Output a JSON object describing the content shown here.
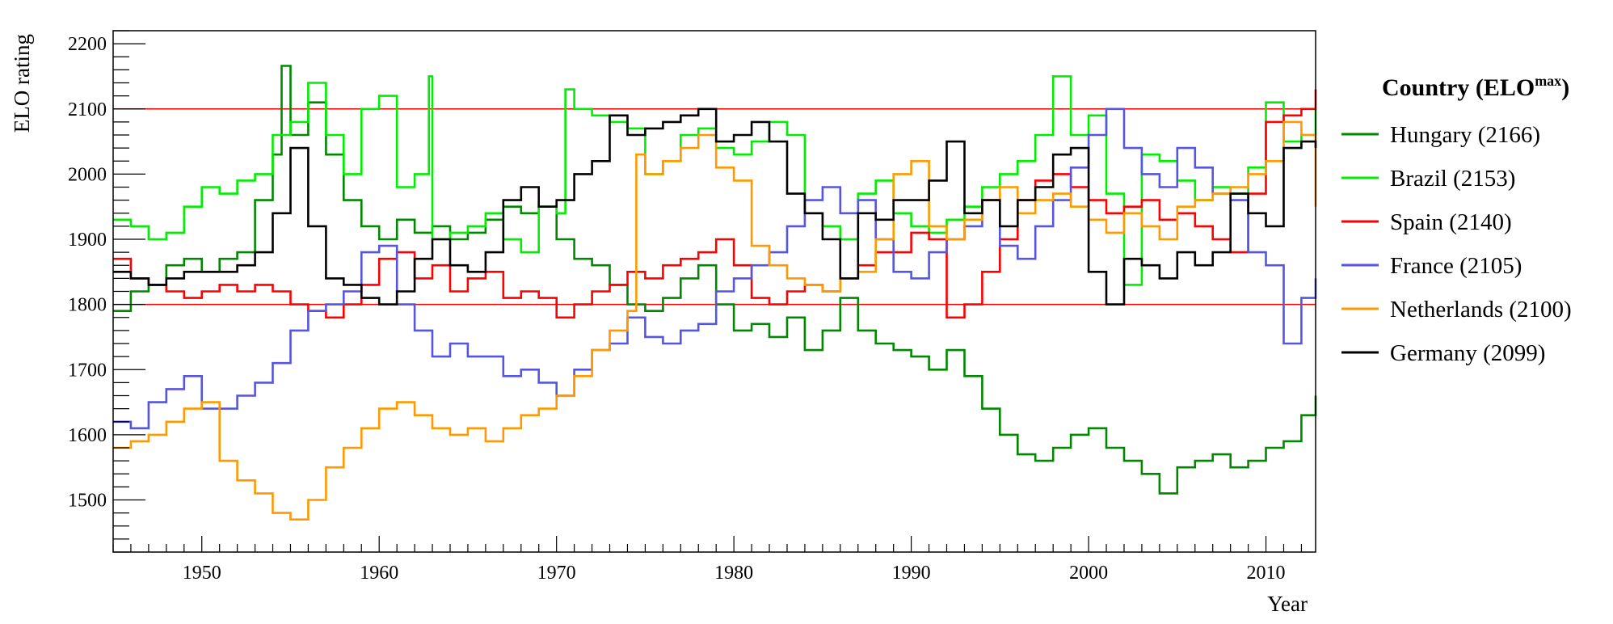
{
  "chart_data": {
    "type": "line",
    "xlabel": "Year",
    "ylabel": "ELO rating",
    "xlim": [
      1945,
      2012.8
    ],
    "ylim": [
      1420,
      2220
    ],
    "x_ticks": [
      1950,
      1960,
      1970,
      1980,
      1990,
      2000,
      2010
    ],
    "y_ticks": [
      1500,
      1600,
      1700,
      1800,
      1900,
      2000,
      2100,
      2200
    ],
    "x_tick_labels": [
      "1950",
      "1960",
      "1970",
      "1980",
      "1990",
      "2000",
      "2010"
    ],
    "y_tick_labels": [
      "1500",
      "1600",
      "1700",
      "1800",
      "1900",
      "2000",
      "2100",
      "2200"
    ],
    "reference_lines": [
      1800,
      2100
    ],
    "reference_color": "#ff0000",
    "grid": false,
    "step": true,
    "legend": {
      "title": "Country (ELO",
      "title_sup": "max",
      "title_end": ")",
      "position": "right"
    },
    "series": [
      {
        "name": "Hungary (2166)",
        "color": "#008800",
        "x": [
          1945,
          1946,
          1947,
          1948,
          1949,
          1950,
          1951,
          1952,
          1953,
          1954,
          1954.5,
          1955,
          1956,
          1957,
          1958,
          1959,
          1960,
          1961,
          1962,
          1963,
          1964,
          1965,
          1966,
          1967,
          1968,
          1969,
          1970,
          1971,
          1972,
          1973,
          1974,
          1975,
          1976,
          1977,
          1978,
          1979,
          1980,
          1981,
          1982,
          1983,
          1984,
          1985,
          1986,
          1987,
          1988,
          1989,
          1990,
          1991,
          1992,
          1993,
          1994,
          1995,
          1996,
          1997,
          1998,
          1999,
          2000,
          2001,
          2002,
          2003,
          2004,
          2005,
          2006,
          2007,
          2008,
          2009,
          2010,
          2011,
          2012,
          2012.8
        ],
        "y": [
          1790,
          1820,
          1830,
          1860,
          1870,
          1850,
          1870,
          1880,
          1960,
          2030,
          2166,
          2060,
          2110,
          2030,
          1960,
          1920,
          1900,
          1930,
          1910,
          1920,
          1900,
          1910,
          1930,
          1950,
          1940,
          1950,
          1900,
          1870,
          1860,
          1830,
          1800,
          1790,
          1810,
          1840,
          1860,
          1800,
          1760,
          1770,
          1750,
          1780,
          1730,
          1760,
          1810,
          1760,
          1740,
          1730,
          1720,
          1700,
          1730,
          1690,
          1640,
          1600,
          1570,
          1560,
          1580,
          1600,
          1610,
          1580,
          1560,
          1540,
          1510,
          1550,
          1560,
          1570,
          1550,
          1560,
          1580,
          1590,
          1630,
          1660
        ]
      },
      {
        "name": "Brazil (2153)",
        "color": "#00ee00",
        "x": [
          1945,
          1946,
          1947,
          1948,
          1949,
          1950,
          1951,
          1952,
          1953,
          1954,
          1955,
          1956,
          1957,
          1958,
          1959,
          1960,
          1961,
          1962,
          1962.8,
          1963,
          1964,
          1965,
          1966,
          1967,
          1968,
          1969,
          1970,
          1970.5,
          1971,
          1972,
          1973,
          1974,
          1975,
          1976,
          1977,
          1978,
          1979,
          1980,
          1981,
          1982,
          1983,
          1984,
          1985,
          1986,
          1987,
          1988,
          1989,
          1990,
          1991,
          1992,
          1993,
          1994,
          1995,
          1996,
          1997,
          1998,
          1999,
          2000,
          2001,
          2002,
          2003,
          2004,
          2005,
          2006,
          2007,
          2008,
          2009,
          2010,
          2011,
          2012,
          2012.8
        ],
        "y": [
          1930,
          1920,
          1900,
          1910,
          1950,
          1980,
          1970,
          1990,
          2000,
          2060,
          2080,
          2140,
          2060,
          2000,
          2100,
          2120,
          1980,
          2000,
          2150,
          1900,
          1910,
          1920,
          1940,
          1900,
          1880,
          1950,
          1940,
          2130,
          2100,
          2090,
          2080,
          2070,
          2000,
          2020,
          2060,
          2070,
          2040,
          2030,
          2050,
          2080,
          2060,
          1940,
          1920,
          1900,
          1970,
          1990,
          1940,
          1920,
          1910,
          1930,
          1950,
          1980,
          2000,
          2020,
          2060,
          2150,
          2060,
          2090,
          1970,
          1830,
          2030,
          2020,
          1990,
          1960,
          1980,
          1970,
          2010,
          2110,
          2050,
          2060,
          2100
        ]
      },
      {
        "name": "Spain (2140)",
        "color": "#ff0000",
        "x": [
          1945,
          1946,
          1947,
          1948,
          1949,
          1950,
          1951,
          1952,
          1953,
          1954,
          1955,
          1956,
          1957,
          1958,
          1959,
          1960,
          1961,
          1962,
          1963,
          1964,
          1965,
          1966,
          1967,
          1968,
          1969,
          1970,
          1971,
          1972,
          1973,
          1974,
          1975,
          1976,
          1977,
          1978,
          1979,
          1980,
          1981,
          1982,
          1983,
          1984,
          1985,
          1986,
          1987,
          1988,
          1989,
          1990,
          1991,
          1992,
          1993,
          1994,
          1995,
          1996,
          1997,
          1998,
          1999,
          2000,
          2001,
          2002,
          2003,
          2004,
          2005,
          2006,
          2007,
          2008,
          2009,
          2010,
          2011,
          2012,
          2012.8
        ],
        "y": [
          1870,
          1840,
          1830,
          1820,
          1810,
          1820,
          1830,
          1820,
          1830,
          1820,
          1800,
          1790,
          1780,
          1800,
          1830,
          1870,
          1880,
          1840,
          1860,
          1820,
          1840,
          1850,
          1810,
          1820,
          1810,
          1780,
          1800,
          1820,
          1830,
          1850,
          1840,
          1860,
          1870,
          1880,
          1900,
          1860,
          1810,
          1800,
          1820,
          1830,
          1820,
          1840,
          1860,
          1880,
          1880,
          1910,
          1900,
          1780,
          1800,
          1850,
          1900,
          1960,
          1990,
          2000,
          1980,
          1960,
          1940,
          1950,
          1960,
          1930,
          1940,
          1920,
          1900,
          1880,
          1970,
          2080,
          2090,
          2100,
          2130
        ]
      },
      {
        "name": "France (2105)",
        "color": "#5555dd",
        "x": [
          1945,
          1946,
          1947,
          1948,
          1949,
          1950,
          1951,
          1952,
          1953,
          1954,
          1955,
          1956,
          1957,
          1958,
          1959,
          1960,
          1961,
          1962,
          1963,
          1964,
          1965,
          1966,
          1967,
          1968,
          1969,
          1970,
          1971,
          1972,
          1973,
          1974,
          1975,
          1976,
          1977,
          1978,
          1979,
          1980,
          1981,
          1982,
          1983,
          1984,
          1985,
          1986,
          1987,
          1988,
          1989,
          1990,
          1991,
          1992,
          1993,
          1994,
          1995,
          1996,
          1997,
          1998,
          1999,
          2000,
          2001,
          2002,
          2003,
          2004,
          2005,
          2006,
          2007,
          2008,
          2009,
          2010,
          2011,
          2012,
          2012.8
        ],
        "y": [
          1620,
          1610,
          1650,
          1670,
          1690,
          1640,
          1640,
          1660,
          1680,
          1710,
          1760,
          1790,
          1800,
          1820,
          1880,
          1890,
          1800,
          1760,
          1720,
          1740,
          1720,
          1720,
          1690,
          1700,
          1680,
          1660,
          1700,
          1730,
          1740,
          1780,
          1750,
          1740,
          1760,
          1770,
          1820,
          1840,
          1860,
          1880,
          1920,
          1960,
          1980,
          1940,
          1960,
          1900,
          1850,
          1840,
          1880,
          1900,
          1920,
          1960,
          1890,
          1870,
          1920,
          1960,
          2010,
          2060,
          2100,
          2040,
          2000,
          1980,
          2040,
          2010,
          1970,
          1960,
          1880,
          1860,
          1740,
          1810,
          1840
        ]
      },
      {
        "name": "Netherlands (2100)",
        "color": "#ff9900",
        "x": [
          1945,
          1946,
          1947,
          1948,
          1949,
          1950,
          1951,
          1952,
          1953,
          1954,
          1955,
          1956,
          1957,
          1958,
          1959,
          1960,
          1961,
          1962,
          1963,
          1964,
          1965,
          1966,
          1967,
          1968,
          1969,
          1970,
          1971,
          1972,
          1973,
          1974,
          1974.5,
          1975,
          1976,
          1977,
          1978,
          1979,
          1980,
          1981,
          1982,
          1983,
          1984,
          1985,
          1986,
          1987,
          1988,
          1989,
          1990,
          1991,
          1992,
          1993,
          1994,
          1995,
          1996,
          1997,
          1998,
          1999,
          2000,
          2001,
          2002,
          2003,
          2004,
          2005,
          2006,
          2007,
          2008,
          2009,
          2010,
          2011,
          2012,
          2012.8
        ],
        "y": [
          1580,
          1590,
          1600,
          1620,
          1640,
          1650,
          1560,
          1530,
          1510,
          1480,
          1470,
          1500,
          1550,
          1580,
          1610,
          1640,
          1650,
          1630,
          1610,
          1600,
          1610,
          1590,
          1610,
          1630,
          1640,
          1660,
          1690,
          1730,
          1760,
          1790,
          2030,
          2000,
          2020,
          2040,
          2060,
          2010,
          1990,
          1890,
          1860,
          1840,
          1830,
          1820,
          1840,
          1850,
          1900,
          2000,
          2020,
          1920,
          1900,
          1930,
          1960,
          1980,
          1940,
          1960,
          1970,
          1950,
          1930,
          1910,
          1940,
          1920,
          1900,
          1950,
          1960,
          1970,
          1980,
          2000,
          2020,
          2080,
          2060,
          1950
        ]
      },
      {
        "name": "Germany (2099)",
        "color": "#000000",
        "x": [
          1945,
          1946,
          1947,
          1948,
          1949,
          1950,
          1951,
          1952,
          1953,
          1954,
          1955,
          1956,
          1957,
          1958,
          1959,
          1960,
          1961,
          1962,
          1963,
          1964,
          1965,
          1966,
          1967,
          1968,
          1969,
          1970,
          1971,
          1972,
          1973,
          1974,
          1975,
          1976,
          1977,
          1978,
          1979,
          1980,
          1981,
          1982,
          1983,
          1984,
          1985,
          1986,
          1987,
          1988,
          1989,
          1990,
          1991,
          1992,
          1993,
          1994,
          1995,
          1996,
          1997,
          1998,
          1999,
          2000,
          2001,
          2002,
          2003,
          2004,
          2005,
          2006,
          2007,
          2008,
          2009,
          2010,
          2011,
          2012,
          2012.8
        ],
        "y": [
          1850,
          1840,
          1830,
          1840,
          1850,
          1850,
          1850,
          1860,
          1880,
          1940,
          2040,
          1920,
          1840,
          1830,
          1810,
          1800,
          1820,
          1870,
          1900,
          1860,
          1850,
          1880,
          1960,
          1980,
          1950,
          1960,
          2000,
          2020,
          2090,
          2060,
          2070,
          2080,
          2090,
          2100,
          2050,
          2060,
          2080,
          2050,
          1970,
          1940,
          1900,
          1840,
          1940,
          1930,
          1960,
          1960,
          1990,
          2050,
          1940,
          1960,
          1920,
          1960,
          1980,
          2030,
          2040,
          1850,
          1800,
          1870,
          1860,
          1840,
          1880,
          1860,
          1880,
          1970,
          1940,
          1920,
          2040,
          2050,
          2040
        ]
      }
    ]
  }
}
